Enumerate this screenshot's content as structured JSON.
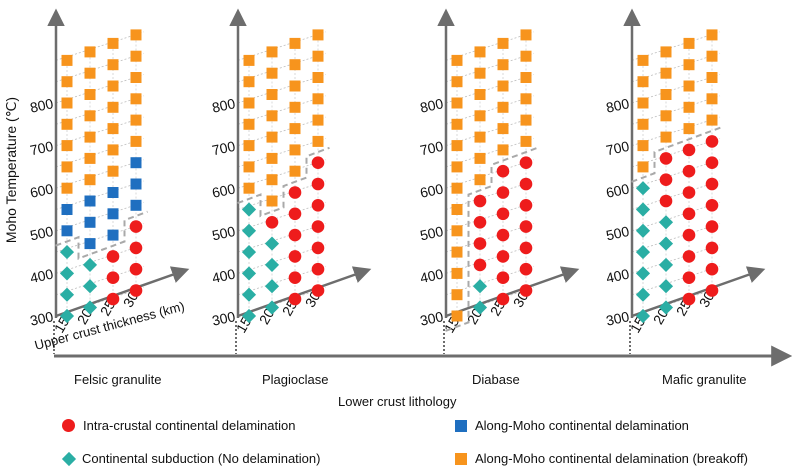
{
  "chart_data": {
    "type": "scatter",
    "title": "",
    "xlabel": "Lower crust lithology",
    "ylabel": "Moho Temperature (℃)",
    "zlabel": "Upper crust thickness (km)",
    "y_ticks": [
      300,
      400,
      500,
      600,
      700,
      800
    ],
    "thickness_ticks": [
      15,
      20,
      25,
      30
    ],
    "temperature_levels": [
      300,
      350,
      400,
      450,
      500,
      550,
      600,
      650,
      700,
      750,
      800,
      850,
      900
    ],
    "legend": [
      {
        "key": "intra",
        "label": "Intra-crustal continental delamination",
        "color": "#ee1c1c",
        "marker": "circle"
      },
      {
        "key": "moho",
        "label": "Along-Moho continental delamination",
        "color": "#1f6fc0",
        "marker": "square"
      },
      {
        "key": "sub",
        "label": "Continental subduction (No delamination)",
        "color": "#2aaea4",
        "marker": "diamond"
      },
      {
        "key": "break",
        "label": "Along-Moho continental delamination (breakoff)",
        "color": "#f7941d",
        "marker": "square"
      }
    ],
    "panels": [
      {
        "name": "Felsic granulite",
        "regimes": {
          "15": [
            "sub",
            "sub",
            "sub",
            "sub",
            "moho",
            "moho",
            "break",
            "break",
            "break",
            "break",
            "break",
            "break",
            "break"
          ],
          "20": [
            "sub",
            "sub",
            "sub",
            "moho",
            "moho",
            "moho",
            "break",
            "break",
            "break",
            "break",
            "break",
            "break",
            "break"
          ],
          "25": [
            "intra",
            "intra",
            "intra",
            "moho",
            "moho",
            "moho",
            "break",
            "break",
            "break",
            "break",
            "break",
            "break",
            "break"
          ],
          "30": [
            "intra",
            "intra",
            "intra",
            "intra",
            "moho",
            "moho",
            "moho",
            "break",
            "break",
            "break",
            "break",
            "break",
            "break"
          ]
        }
      },
      {
        "name": "Plagioclase",
        "regimes": {
          "15": [
            "sub",
            "sub",
            "sub",
            "sub",
            "sub",
            "sub",
            "break",
            "break",
            "break",
            "break",
            "break",
            "break",
            "break"
          ],
          "20": [
            "sub",
            "sub",
            "sub",
            "sub",
            "intra",
            "break",
            "break",
            "break",
            "break",
            "break",
            "break",
            "break",
            "break"
          ],
          "25": [
            "intra",
            "intra",
            "intra",
            "intra",
            "intra",
            "intra",
            "break",
            "break",
            "break",
            "break",
            "break",
            "break",
            "break"
          ],
          "30": [
            "intra",
            "intra",
            "intra",
            "intra",
            "intra",
            "intra",
            "intra",
            "break",
            "break",
            "break",
            "break",
            "break",
            "break"
          ]
        }
      },
      {
        "name": "Diabase",
        "regimes": {
          "15": [
            "break",
            "break",
            "break",
            "break",
            "break",
            "break",
            "break",
            "break",
            "break",
            "break",
            "break",
            "break",
            "break"
          ],
          "20": [
            "sub",
            "sub",
            "intra",
            "intra",
            "intra",
            "intra",
            "break",
            "break",
            "break",
            "break",
            "break",
            "break",
            "break"
          ],
          "25": [
            "intra",
            "intra",
            "intra",
            "intra",
            "intra",
            "intra",
            "intra",
            "break",
            "break",
            "break",
            "break",
            "break",
            "break"
          ],
          "30": [
            "intra",
            "intra",
            "intra",
            "intra",
            "intra",
            "intra",
            "intra",
            "break",
            "break",
            "break",
            "break",
            "break",
            "break"
          ]
        }
      },
      {
        "name": "Mafic granulite",
        "regimes": {
          "15": [
            "sub",
            "sub",
            "sub",
            "sub",
            "sub",
            "sub",
            "sub",
            "break",
            "break",
            "break",
            "break",
            "break",
            "break"
          ],
          "20": [
            "sub",
            "sub",
            "sub",
            "sub",
            "sub",
            "intra",
            "intra",
            "intra",
            "break",
            "break",
            "break",
            "break",
            "break"
          ],
          "25": [
            "intra",
            "intra",
            "intra",
            "intra",
            "intra",
            "intra",
            "intra",
            "intra",
            "break",
            "break",
            "break",
            "break",
            "break"
          ],
          "30": [
            "intra",
            "intra",
            "intra",
            "intra",
            "intra",
            "intra",
            "intra",
            "intra",
            "break",
            "break",
            "break",
            "break",
            "break"
          ]
        }
      }
    ]
  }
}
